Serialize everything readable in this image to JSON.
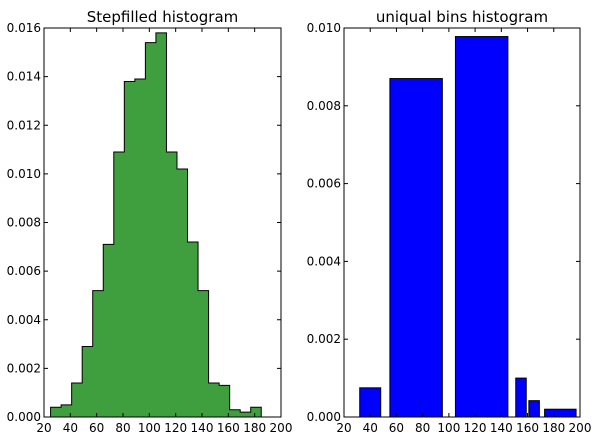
{
  "chart_data": [
    {
      "type": "histogram",
      "title": "Stepfilled histogram",
      "histtype": "stepfilled",
      "color": "#3f9f3f",
      "edge_color": "#000000",
      "bin_edges": [
        25,
        33,
        41,
        49,
        57,
        65,
        73,
        81,
        89,
        97,
        105,
        113,
        121,
        129,
        137,
        145,
        153,
        161,
        169,
        177,
        185
      ],
      "values": [
        0.0004,
        0.0005,
        0.0014,
        0.0029,
        0.0052,
        0.0071,
        0.0109,
        0.0138,
        0.0139,
        0.0154,
        0.0158,
        0.0109,
        0.0102,
        0.0072,
        0.0052,
        0.0014,
        0.0013,
        0.0003,
        0.0002,
        0.0004
      ],
      "xlim": [
        20,
        200
      ],
      "ylim": [
        0,
        0.016
      ],
      "xticks": [
        20,
        40,
        60,
        80,
        100,
        120,
        140,
        160,
        180,
        200
      ],
      "xtick_labels": [
        "20",
        "40",
        "60",
        "80",
        "100",
        "120",
        "140",
        "160",
        "180",
        "200"
      ],
      "yticks": [
        0,
        0.002,
        0.004,
        0.006,
        0.008,
        0.01,
        0.012,
        0.014,
        0.016
      ],
      "ytick_labels": [
        "0.000",
        "0.002",
        "0.004",
        "0.006",
        "0.008",
        "0.010",
        "0.012",
        "0.014",
        "0.016"
      ],
      "grid": false
    },
    {
      "type": "histogram",
      "title": "uniqual bins histogram",
      "histtype": "bar",
      "color": "#0000ff",
      "edge_color": "#000000",
      "bin_edges": [
        30,
        50,
        100,
        150,
        160,
        170,
        200
      ],
      "values": [
        0.00075,
        0.0087,
        0.00978,
        0.001,
        0.00042,
        0.0002
      ],
      "xlim": [
        20,
        200
      ],
      "ylim": [
        0,
        0.01
      ],
      "xticks": [
        20,
        40,
        60,
        80,
        100,
        120,
        140,
        160,
        180,
        200
      ],
      "xtick_labels": [
        "20",
        "40",
        "60",
        "80",
        "100",
        "120",
        "140",
        "160",
        "180",
        "200"
      ],
      "yticks": [
        0,
        0.002,
        0.004,
        0.006,
        0.008,
        0.01
      ],
      "ytick_labels": [
        "0.000",
        "0.002",
        "0.004",
        "0.006",
        "0.008",
        "0.010"
      ],
      "grid": false
    }
  ]
}
